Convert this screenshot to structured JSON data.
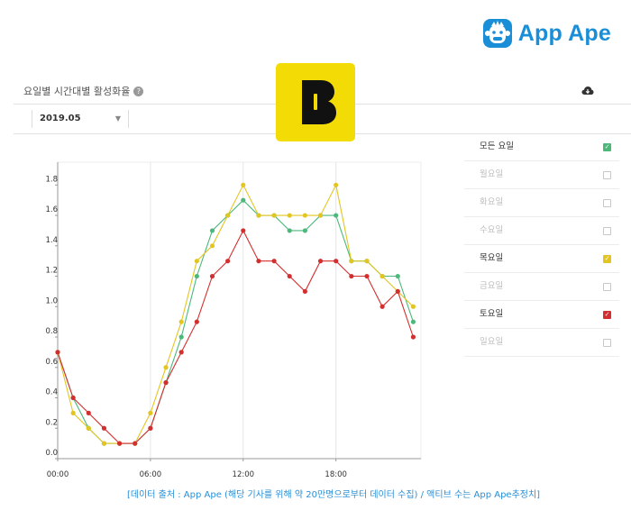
{
  "brand": {
    "name": "App Ape",
    "color": "#1a8fd8"
  },
  "panel": {
    "title": "요일별 시간대별 활성화율",
    "help_icon": "question-circle-icon",
    "download_icon": "cloud-download-icon"
  },
  "filter": {
    "date": "2019.05"
  },
  "logo": {
    "letter": "B",
    "bg": "#f3dc06"
  },
  "chart_data": {
    "type": "line",
    "title": "요일별 시간대별 활성화율",
    "xlabel": "",
    "ylabel": "",
    "x": [
      0,
      1,
      2,
      3,
      4,
      5,
      6,
      7,
      8,
      9,
      10,
      11,
      12,
      13,
      14,
      15,
      16,
      17,
      18,
      19,
      20,
      21,
      22,
      23
    ],
    "x_ticks": [
      0,
      6,
      12,
      18
    ],
    "x_tick_labels": [
      "00:00",
      "06:00",
      "12:00",
      "18:00"
    ],
    "y_ticks": [
      0,
      0.2,
      0.4,
      0.6,
      0.8,
      1.0,
      1.2,
      1.4,
      1.6,
      1.8
    ],
    "y_tick_labels": [
      "0.0",
      "0.2",
      "0.4",
      "0.6",
      "0.8",
      "1.0",
      "1.2",
      "1.4",
      "1.6",
      "1.8"
    ],
    "ylim": [
      0,
      1.95
    ],
    "xlim": [
      0,
      23.5
    ],
    "grid": true,
    "series": [
      {
        "name": "모든 요일",
        "color": "#4cb87a",
        "values": [
          0.7,
          0.4,
          0.2,
          0.1,
          0.1,
          0.1,
          0.2,
          0.5,
          0.8,
          1.2,
          1.5,
          1.6,
          1.7,
          1.6,
          1.6,
          1.5,
          1.5,
          1.6,
          1.6,
          1.3,
          1.3,
          1.2,
          1.2,
          0.9
        ]
      },
      {
        "name": "목요일",
        "color": "#e3c522",
        "values": [
          0.7,
          0.3,
          0.2,
          0.1,
          0.1,
          0.1,
          0.3,
          0.6,
          0.9,
          1.3,
          1.4,
          1.6,
          1.8,
          1.6,
          1.6,
          1.6,
          1.6,
          1.6,
          1.8,
          1.3,
          1.3,
          1.2,
          1.1,
          1.0
        ]
      },
      {
        "name": "토요일",
        "color": "#d42f2f",
        "values": [
          0.7,
          0.4,
          0.3,
          0.2,
          0.1,
          0.1,
          0.2,
          0.5,
          0.7,
          0.9,
          1.2,
          1.3,
          1.5,
          1.3,
          1.3,
          1.2,
          1.1,
          1.3,
          1.3,
          1.2,
          1.2,
          1.0,
          1.1,
          0.8
        ]
      }
    ]
  },
  "legend": [
    {
      "label": "모든 요일",
      "checked": true,
      "color": "#4cb87a"
    },
    {
      "label": "월요일",
      "checked": false,
      "color": ""
    },
    {
      "label": "화요일",
      "checked": false,
      "color": ""
    },
    {
      "label": "수요일",
      "checked": false,
      "color": ""
    },
    {
      "label": "목요일",
      "checked": true,
      "color": "#e3c522"
    },
    {
      "label": "금요일",
      "checked": false,
      "color": ""
    },
    {
      "label": "토요일",
      "checked": true,
      "color": "#d42f2f"
    },
    {
      "label": "일요일",
      "checked": false,
      "color": ""
    }
  ],
  "source": "[데이터 출처 : App Ape (해당 기사를 위해 약 20만명으로부터 데이터 수집) / 액티브 수는 App Ape추정치]"
}
